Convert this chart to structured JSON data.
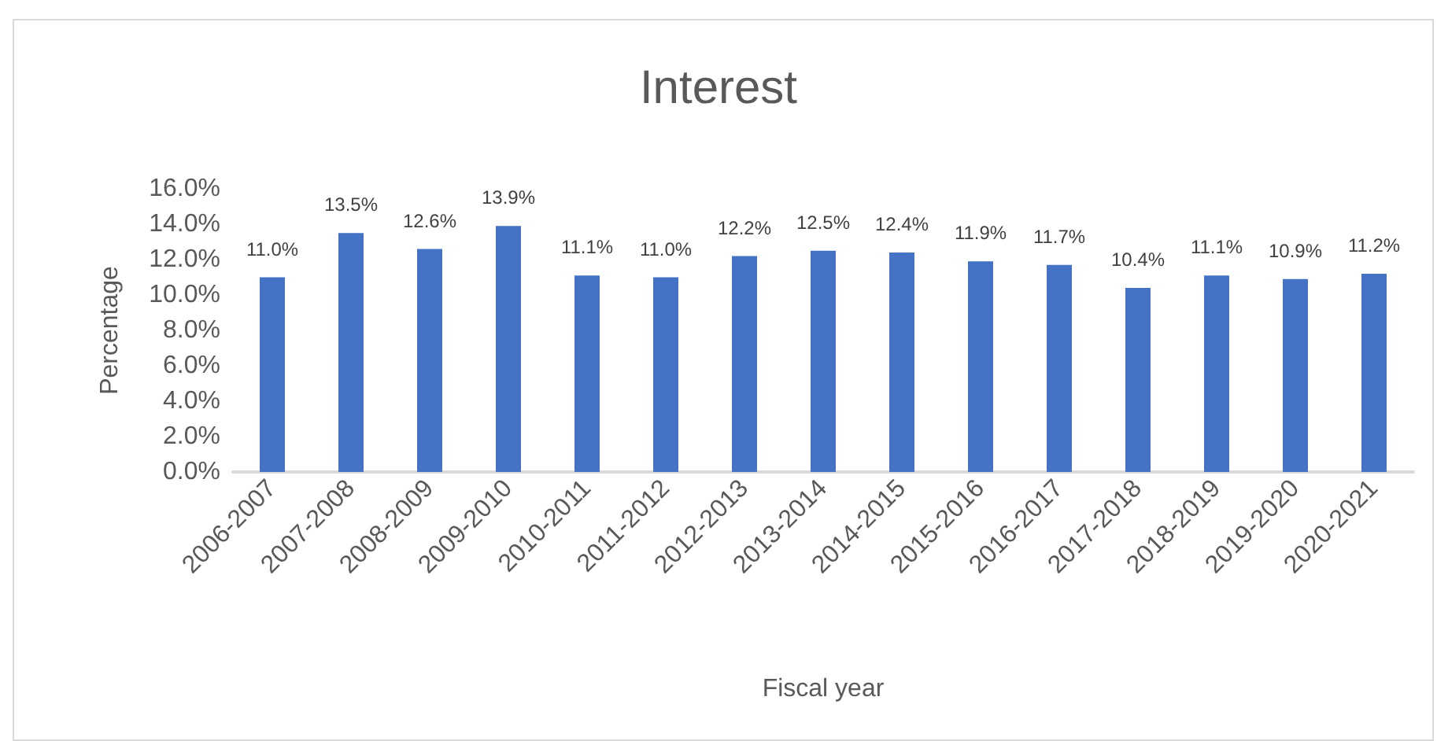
{
  "chart_data": {
    "type": "bar",
    "title": "Interest",
    "xlabel": "Fiscal year",
    "ylabel": "Percentage",
    "categories": [
      "2006-2007",
      "2007-2008",
      "2008-2009",
      "2009-2010",
      "2010-2011",
      "2011-2012",
      "2012-2013",
      "2013-2014",
      "2014-2015",
      "2015-2016",
      "2016-2017",
      "2017-2018",
      "2018-2019",
      "2019-2020",
      "2020-2021"
    ],
    "values": [
      11.0,
      13.5,
      12.6,
      13.9,
      11.1,
      11.0,
      12.2,
      12.5,
      12.4,
      11.9,
      11.7,
      10.4,
      11.1,
      10.9,
      11.2
    ],
    "value_labels": [
      "11.0%",
      "13.5%",
      "12.6%",
      "13.9%",
      "11.1%",
      "11.0%",
      "12.2%",
      "12.5%",
      "12.4%",
      "11.9%",
      "11.7%",
      "10.4%",
      "11.1%",
      "10.9%",
      "11.2%"
    ],
    "color": "#4472c4",
    "ylim": [
      0,
      16
    ],
    "yticks": [
      {
        "value": 0,
        "label": "0.0%"
      },
      {
        "value": 2,
        "label": "2.0%"
      },
      {
        "value": 4,
        "label": "4.0%"
      },
      {
        "value": 6,
        "label": "6.0%"
      },
      {
        "value": 8,
        "label": "8.0%"
      },
      {
        "value": 10,
        "label": "10.0%"
      },
      {
        "value": 12,
        "label": "12.0%"
      },
      {
        "value": 14,
        "label": "14.0%"
      },
      {
        "value": 16,
        "label": "16.0%"
      }
    ],
    "grid": false
  }
}
